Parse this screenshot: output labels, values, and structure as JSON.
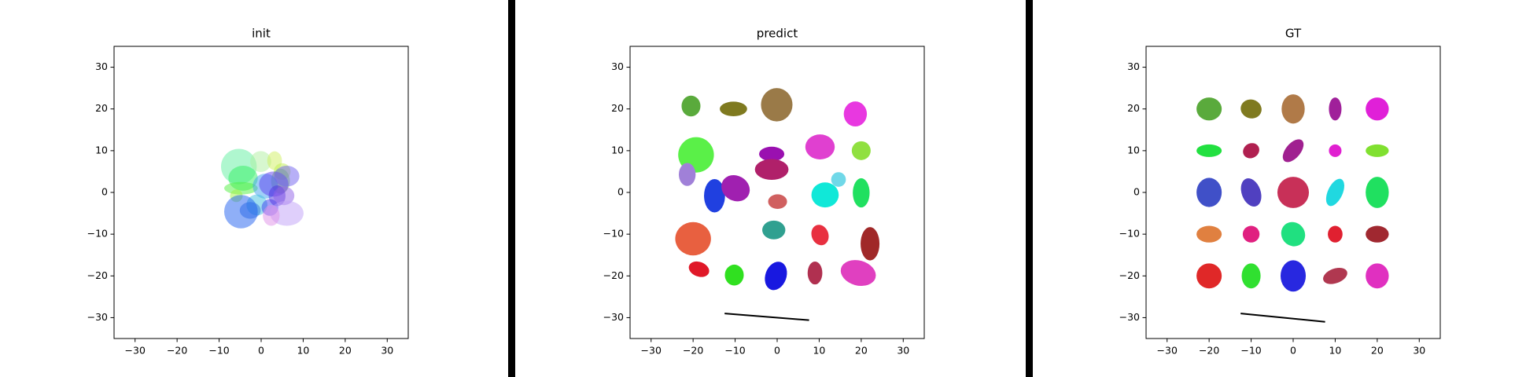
{
  "chart_data": [
    {
      "type": "ellipse",
      "title": "init",
      "alpha": 0.5,
      "xlim": [
        -35,
        35
      ],
      "ylim": [
        -35,
        35
      ],
      "xticks": [
        {
          "value": -30,
          "label": "−30"
        },
        {
          "value": -20,
          "label": "−20"
        },
        {
          "value": -10,
          "label": "−10"
        },
        0,
        10,
        20,
        30
      ],
      "yticks": [
        {
          "value": -30,
          "label": "−30"
        },
        {
          "value": -20,
          "label": "−20"
        },
        {
          "value": -10,
          "label": "−10"
        },
        0,
        10,
        20,
        30
      ],
      "ellipses": [
        {
          "x": -5.3,
          "y": 6.2,
          "w": 8.5,
          "h": 8.5,
          "angle": 0,
          "color": "#60f0a0"
        },
        {
          "x": -0.1,
          "y": 7.4,
          "w": 5,
          "h": 5,
          "angle": 0,
          "color": "#b0f0a0"
        },
        {
          "x": 3.2,
          "y": 7.6,
          "w": 3.5,
          "h": 4.5,
          "angle": 0,
          "color": "#d0f060"
        },
        {
          "x": 5,
          "y": 5,
          "w": 4,
          "h": 4,
          "angle": 0,
          "color": "#c0f050"
        },
        {
          "x": -4.3,
          "y": 3.4,
          "w": 7,
          "h": 6,
          "angle": 0,
          "color": "#30f060"
        },
        {
          "x": -4.8,
          "y": 1,
          "w": 8,
          "h": 3,
          "angle": 0,
          "color": "#50f040"
        },
        {
          "x": -5.9,
          "y": -0.8,
          "w": 3,
          "h": 3,
          "angle": 0,
          "color": "#a0f040"
        },
        {
          "x": 4.6,
          "y": 2.7,
          "w": 4.5,
          "h": 6,
          "angle": 0,
          "color": "#80e040"
        },
        {
          "x": 1,
          "y": 1.5,
          "w": 6,
          "h": 6,
          "angle": 0,
          "color": "#40a0f0"
        },
        {
          "x": 3,
          "y": 2,
          "w": 7,
          "h": 6,
          "angle": 0,
          "color": "#6040f0"
        },
        {
          "x": 6.1,
          "y": 3.9,
          "w": 6,
          "h": 5,
          "angle": 0,
          "color": "#7060f0"
        },
        {
          "x": -1,
          "y": -3,
          "w": 5,
          "h": 5,
          "angle": 0,
          "color": "#40c0e0"
        },
        {
          "x": -2.6,
          "y": -4.3,
          "w": 5,
          "h": 4,
          "angle": 0,
          "color": "#3070e0"
        },
        {
          "x": 2.1,
          "y": -3.6,
          "w": 4,
          "h": 4,
          "angle": 0,
          "color": "#4040f0"
        },
        {
          "x": 3.8,
          "y": -0.8,
          "w": 4,
          "h": 5,
          "angle": 0,
          "color": "#5030e0"
        },
        {
          "x": 5.4,
          "y": -0.8,
          "w": 5,
          "h": 4.5,
          "angle": 0,
          "color": "#9060e8"
        },
        {
          "x": 6.1,
          "y": -5,
          "w": 8,
          "h": 6,
          "angle": 0,
          "color": "#c0a0f8"
        },
        {
          "x": 2.4,
          "y": -5.5,
          "w": 4,
          "h": 5,
          "angle": 0,
          "color": "#e090e8"
        },
        {
          "x": -4.8,
          "y": -4.6,
          "w": 8,
          "h": 8,
          "angle": 0,
          "color": "#2060f0"
        }
      ]
    },
    {
      "type": "ellipse",
      "title": "predict",
      "alpha": 1,
      "xlim": [
        -35,
        35
      ],
      "ylim": [
        -35,
        35
      ],
      "xticks": [
        {
          "value": -30,
          "label": "−30"
        },
        {
          "value": -20,
          "label": "−20"
        },
        {
          "value": -10,
          "label": "−10"
        },
        0,
        10,
        20,
        30
      ],
      "yticks": [
        {
          "value": -30,
          "label": "−30"
        },
        {
          "value": -20,
          "label": "−20"
        },
        {
          "value": -10,
          "label": "−10"
        },
        0,
        10,
        20,
        30
      ],
      "ellipses": [
        {
          "x": -20.5,
          "y": 20.7,
          "w": 4.5,
          "h": 5,
          "angle": 0,
          "color": "#5aaa3c"
        },
        {
          "x": -10.4,
          "y": 20,
          "w": 6.5,
          "h": 3.5,
          "angle": 0,
          "color": "#7f7a20"
        },
        {
          "x": -0.1,
          "y": 21,
          "w": 7.5,
          "h": 8,
          "angle": 0,
          "color": "#9a7a48"
        },
        {
          "x": 18.6,
          "y": 18.8,
          "w": 5.5,
          "h": 6,
          "angle": 0,
          "color": "#e838e0"
        },
        {
          "x": -19.3,
          "y": 9,
          "w": 8.5,
          "h": 8.5,
          "angle": 0,
          "color": "#5af048"
        },
        {
          "x": -21.4,
          "y": 4.3,
          "w": 4,
          "h": 5.5,
          "angle": 0,
          "color": "#a080d8"
        },
        {
          "x": -1.3,
          "y": 9.2,
          "w": 6,
          "h": 3.5,
          "angle": 0,
          "color": "#9a10b0"
        },
        {
          "x": 10.2,
          "y": 10.9,
          "w": 7,
          "h": 6,
          "angle": 0,
          "color": "#e040d0"
        },
        {
          "x": 20,
          "y": 10,
          "w": 4.5,
          "h": 4.5,
          "angle": 0,
          "color": "#90e040"
        },
        {
          "x": -1.3,
          "y": 5.5,
          "w": 8,
          "h": 5,
          "angle": 0,
          "color": "#b0206a"
        },
        {
          "x": -14.9,
          "y": -0.8,
          "w": 5,
          "h": 8,
          "angle": 0,
          "color": "#2040e0"
        },
        {
          "x": -9.9,
          "y": 1,
          "w": 7,
          "h": 6,
          "angle": -30,
          "color": "#a020b0"
        },
        {
          "x": 14.6,
          "y": 3.1,
          "w": 3.5,
          "h": 3.5,
          "angle": 0,
          "color": "#70d8e8"
        },
        {
          "x": 11.4,
          "y": -0.6,
          "w": 6.5,
          "h": 6,
          "angle": 0,
          "color": "#10e8d8"
        },
        {
          "x": 20,
          "y": -0.1,
          "w": 4,
          "h": 7,
          "angle": 0,
          "color": "#20e060"
        },
        {
          "x": 0.1,
          "y": -2.2,
          "w": 4.5,
          "h": 3.5,
          "angle": 0,
          "color": "#d06060"
        },
        {
          "x": -20,
          "y": -11.1,
          "w": 8.5,
          "h": 8,
          "angle": 0,
          "color": "#e86040"
        },
        {
          "x": -0.8,
          "y": -9,
          "w": 5.5,
          "h": 4.5,
          "angle": 0,
          "color": "#30a090"
        },
        {
          "x": 10.2,
          "y": -10.2,
          "w": 4,
          "h": 5,
          "angle": 20,
          "color": "#e83040"
        },
        {
          "x": 22.1,
          "y": -12.3,
          "w": 4.5,
          "h": 8,
          "angle": 0,
          "color": "#a02828"
        },
        {
          "x": -18.6,
          "y": -18.4,
          "w": 5,
          "h": 3.5,
          "angle": -20,
          "color": "#e01828"
        },
        {
          "x": -10.2,
          "y": -19.8,
          "w": 4.5,
          "h": 5,
          "angle": 0,
          "color": "#30e020"
        },
        {
          "x": -0.3,
          "y": -20,
          "w": 5,
          "h": 7,
          "angle": -20,
          "color": "#1818e0"
        },
        {
          "x": 9,
          "y": -19.3,
          "w": 3.5,
          "h": 5.5,
          "angle": 0,
          "color": "#b03050"
        },
        {
          "x": 19.3,
          "y": -19.3,
          "w": 8.5,
          "h": 6,
          "angle": -15,
          "color": "#e040c0"
        }
      ],
      "segment": {
        "x": [
          -12.5,
          7.6
        ],
        "y": [
          -29,
          -30.6
        ]
      }
    },
    {
      "type": "ellipse",
      "title": "GT",
      "alpha": 1,
      "xlim": [
        -35,
        35
      ],
      "ylim": [
        -35,
        35
      ],
      "xticks": [
        {
          "value": -30,
          "label": "−30"
        },
        {
          "value": -20,
          "label": "−20"
        },
        {
          "value": -10,
          "label": "−10"
        },
        0,
        10,
        20,
        30
      ],
      "yticks": [
        {
          "value": -30,
          "label": "−30"
        },
        {
          "value": -20,
          "label": "−20"
        },
        {
          "value": -10,
          "label": "−10"
        },
        0,
        10,
        20,
        30
      ],
      "ellipses": [
        {
          "x": -20,
          "y": 20,
          "w": 6,
          "h": 5.5,
          "angle": 0,
          "color": "#5aaa3c"
        },
        {
          "x": -10,
          "y": 20,
          "w": 5,
          "h": 4.5,
          "angle": -15,
          "color": "#7f7a20"
        },
        {
          "x": 0,
          "y": 20,
          "w": 5.5,
          "h": 7,
          "angle": 0,
          "color": "#b07a48"
        },
        {
          "x": 10,
          "y": 20,
          "w": 3,
          "h": 5.5,
          "angle": 0,
          "color": "#a0209a"
        },
        {
          "x": 20,
          "y": 20,
          "w": 5.5,
          "h": 5.5,
          "angle": 0,
          "color": "#e020d8"
        },
        {
          "x": -20,
          "y": 10,
          "w": 6,
          "h": 3,
          "angle": 0,
          "color": "#22e040"
        },
        {
          "x": -10,
          "y": 10,
          "w": 4,
          "h": 3.5,
          "angle": 30,
          "color": "#b02050"
        },
        {
          "x": 0,
          "y": 10,
          "w": 3.5,
          "h": 6.5,
          "angle": -40,
          "color": "#a02090"
        },
        {
          "x": 10,
          "y": 10,
          "w": 3,
          "h": 3,
          "angle": 0,
          "color": "#e020d0"
        },
        {
          "x": 20,
          "y": 10,
          "w": 5.5,
          "h": 3,
          "angle": 0,
          "color": "#80e030"
        },
        {
          "x": -20,
          "y": 0,
          "w": 6,
          "h": 7,
          "angle": 0,
          "color": "#4050c8"
        },
        {
          "x": -10,
          "y": 0,
          "w": 4.5,
          "h": 7,
          "angle": 20,
          "color": "#5040c0"
        },
        {
          "x": 0,
          "y": 0,
          "w": 7.5,
          "h": 7.5,
          "angle": 0,
          "color": "#c83058"
        },
        {
          "x": 10,
          "y": 0,
          "w": 3.5,
          "h": 7,
          "angle": -25,
          "color": "#20d8e0"
        },
        {
          "x": 20,
          "y": 0,
          "w": 5.5,
          "h": 7.5,
          "angle": 0,
          "color": "#20e060"
        },
        {
          "x": -20,
          "y": -10,
          "w": 6,
          "h": 4,
          "angle": 0,
          "color": "#e08040"
        },
        {
          "x": -10,
          "y": -10,
          "w": 4,
          "h": 4,
          "angle": 0,
          "color": "#e02080"
        },
        {
          "x": 0,
          "y": -10,
          "w": 5.5,
          "h": 6,
          "angle": 40,
          "color": "#20e080"
        },
        {
          "x": 10,
          "y": -10,
          "w": 3.5,
          "h": 4,
          "angle": 0,
          "color": "#e02030"
        },
        {
          "x": 20,
          "y": -10,
          "w": 5.5,
          "h": 4,
          "angle": 0,
          "color": "#a02830"
        },
        {
          "x": -20,
          "y": -20,
          "w": 6,
          "h": 6,
          "angle": 0,
          "color": "#e02828"
        },
        {
          "x": -10,
          "y": -20,
          "w": 4.5,
          "h": 6,
          "angle": 0,
          "color": "#30e030"
        },
        {
          "x": 0,
          "y": -20,
          "w": 6,
          "h": 7.5,
          "angle": 0,
          "color": "#2828e0"
        },
        {
          "x": 10,
          "y": -20,
          "w": 6,
          "h": 3.5,
          "angle": 20,
          "color": "#b03850"
        },
        {
          "x": 20,
          "y": -20,
          "w": 5.5,
          "h": 6,
          "angle": 0,
          "color": "#e030c0"
        }
      ],
      "segment": {
        "x": [
          -12.5,
          7.6
        ],
        "y": [
          -29,
          -31
        ]
      }
    }
  ]
}
